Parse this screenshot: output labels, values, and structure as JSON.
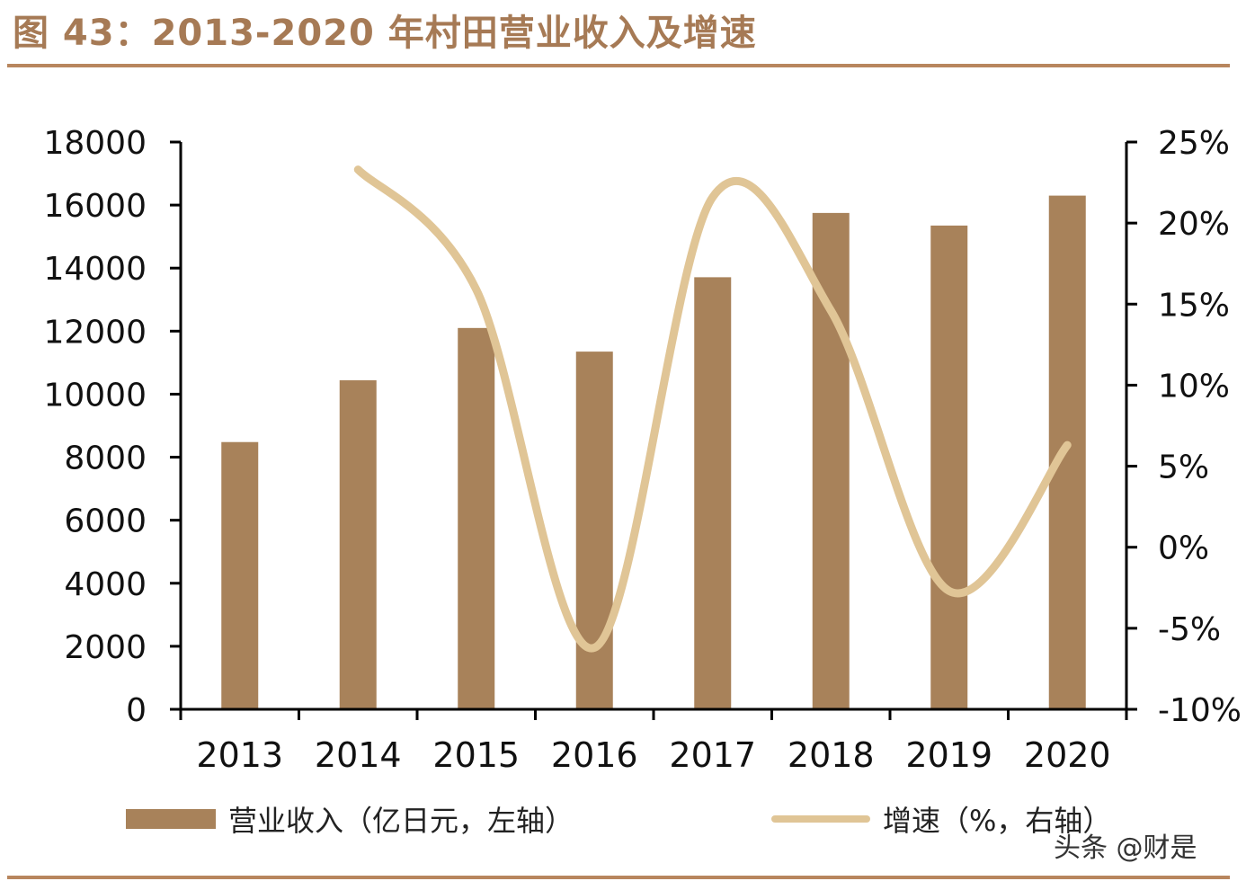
{
  "title": "图 43：2013-2020 年村田营业收入及增速",
  "watermark": "头条 @财是",
  "colors": {
    "bar": "#a8825a",
    "line": "#e0c596",
    "accent": "#a67a55"
  },
  "chart_data": {
    "type": "bar",
    "categories": [
      "2013",
      "2014",
      "2015",
      "2016",
      "2017",
      "2018",
      "2019",
      "2020"
    ],
    "series": [
      {
        "name": "营业收入（亿日元，左轴）",
        "type": "bar",
        "axis": "left",
        "values": [
          8480,
          10440,
          12100,
          11350,
          13710,
          15750,
          15350,
          16300
        ]
      },
      {
        "name": "增速（%，右轴）",
        "type": "line",
        "axis": "right",
        "smooth": true,
        "values": [
          null,
          23.3,
          15.9,
          -6.2,
          21.6,
          14.6,
          -2.7,
          6.3
        ]
      }
    ],
    "y_left": {
      "min": 0,
      "max": 18000,
      "ticks": [
        "0",
        "2000",
        "4000",
        "6000",
        "8000",
        "10000",
        "12000",
        "14000",
        "16000",
        "18000"
      ]
    },
    "y_right": {
      "min": -10,
      "max": 25,
      "ticks": [
        "-10%",
        "-5%",
        "0%",
        "5%",
        "10%",
        "15%",
        "20%",
        "25%"
      ]
    },
    "grid": false,
    "legend_position": "bottom"
  }
}
